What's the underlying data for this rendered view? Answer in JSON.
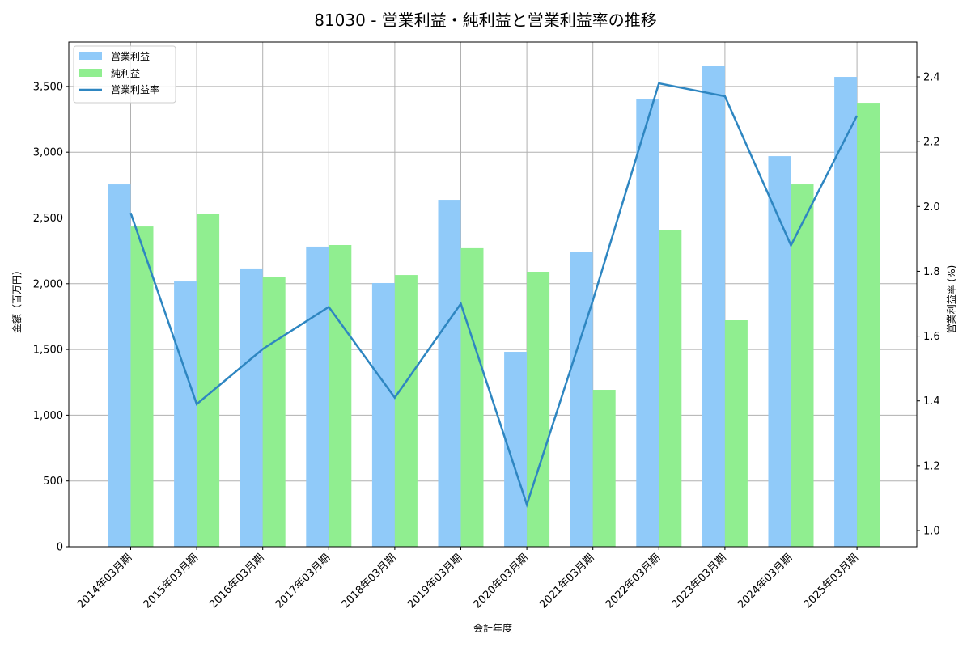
{
  "title": "81030 - 営業利益・純利益と営業利益率の推移",
  "colors": {
    "operating_profit": "#90CAF9",
    "net_profit": "#90EE90",
    "margin_line": "#2E86C1",
    "grid": "#b0b0b0"
  },
  "legend": {
    "items": [
      {
        "label": "営業利益",
        "type": "bar"
      },
      {
        "label": "純利益",
        "type": "bar"
      },
      {
        "label": "営業利益率",
        "type": "line"
      }
    ]
  },
  "axes": {
    "xlabel": "会計年度",
    "ylabel_left": "金額（百万円）",
    "ylabel_right": "営業利益率 (%)",
    "left_ticks": [
      "0",
      "500",
      "1,000",
      "1,500",
      "2,000",
      "2,500",
      "3,000",
      "3,500"
    ],
    "right_ticks": [
      "1.0",
      "1.2",
      "1.4",
      "1.6",
      "1.8",
      "2.0",
      "2.2",
      "2.4"
    ]
  },
  "chart_data": {
    "type": "bar",
    "title": "81030 - 営業利益・純利益と営業利益率の推移",
    "xlabel": "会計年度",
    "ylabel": "金額（百万円）",
    "ylabel_right": "営業利益率 (%)",
    "categories": [
      "2014年03月期",
      "2015年03月期",
      "2016年03月期",
      "2017年03月期",
      "2018年03月期",
      "2019年03月期",
      "2020年03月期",
      "2021年03月期",
      "2022年03月期",
      "2023年03月期",
      "2024年03月期",
      "2025年03月期"
    ],
    "series": [
      {
        "name": "営業利益",
        "type": "bar",
        "axis": "left",
        "values": [
          2755,
          2017,
          2116,
          2282,
          2005,
          2638,
          1482,
          2239,
          3407,
          3659,
          2970,
          3573
        ]
      },
      {
        "name": "純利益",
        "type": "bar",
        "axis": "left",
        "values": [
          2435,
          2528,
          2054,
          2294,
          2066,
          2270,
          2091,
          1193,
          2405,
          1722,
          2755,
          3376
        ]
      },
      {
        "name": "営業利益率",
        "type": "line",
        "axis": "right",
        "values": [
          1.98,
          1.39,
          1.56,
          1.69,
          1.41,
          1.7,
          1.08,
          1.71,
          2.38,
          2.34,
          1.88,
          2.28
        ]
      }
    ],
    "ylim": [
      0,
      3840
    ],
    "ylim_right": [
      0.95,
      2.5
    ],
    "grid": true,
    "legend_position": "upper left"
  }
}
